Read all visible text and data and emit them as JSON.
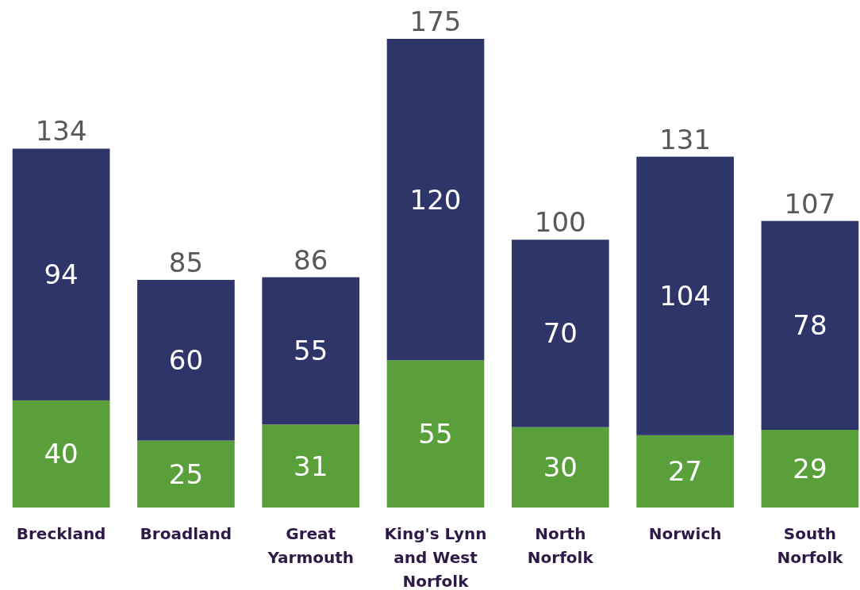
{
  "chart_data": {
    "type": "bar",
    "stacked": true,
    "data_labels": true,
    "categories": [
      "Breckland",
      "Broadland",
      "Great Yarmouth",
      "King's Lynn and West Norfolk",
      "North Norfolk",
      "Norwich",
      "South Norfolk"
    ],
    "series": [
      {
        "color": "#5aa03a",
        "values": [
          40,
          25,
          31,
          55,
          30,
          27,
          29
        ]
      },
      {
        "color": "#2d3569",
        "values": [
          94,
          60,
          55,
          120,
          70,
          104,
          78
        ]
      }
    ],
    "totals": [
      "134",
      "85",
      "86",
      "175",
      "100",
      "131",
      "107"
    ]
  }
}
